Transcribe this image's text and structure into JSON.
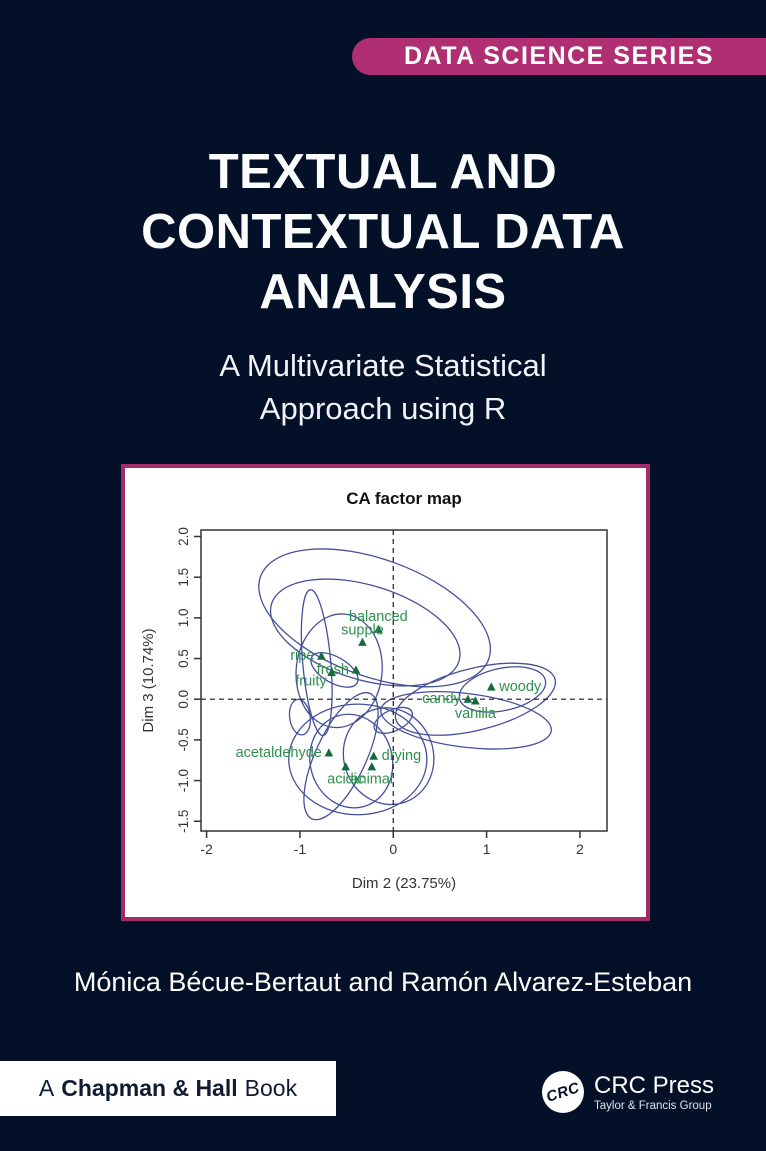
{
  "cover": {
    "series_banner": "DATA SCIENCE SERIES",
    "title_lines": [
      "TEXTUAL AND",
      "CONTEXTUAL DATA",
      "ANALYSIS"
    ],
    "subtitle_lines": [
      "A Multivariate Statistical",
      "Approach using R"
    ],
    "authors": "Mónica Bécue-Bertaut and Ramón Alvarez-Esteban",
    "footer": {
      "chapman_prefix": "A",
      "chapman_bold": "Chapman & Hall",
      "chapman_suffix": "Book",
      "crc_monogram": "CRC",
      "crc_name": "CRC Press",
      "crc_tagline": "Taylor & Francis Group"
    },
    "colors": {
      "background": "#031027",
      "banner": "#b02e72",
      "plot_border": "#a22b6c",
      "text": "#ffffff"
    }
  },
  "chart_data": {
    "type": "scatter",
    "title": "CA factor map",
    "xlabel": "Dim 2 (23.75%)",
    "ylabel": "Dim 3 (10.74%)",
    "xlim": [
      -2.06,
      2.29
    ],
    "ylim": [
      -1.62,
      2.08
    ],
    "x_ticks": [
      {
        "v": -2,
        "label": "-2"
      },
      {
        "v": -1,
        "label": "-1"
      },
      {
        "v": 0,
        "label": "0"
      },
      {
        "v": 1,
        "label": "1"
      },
      {
        "v": 2,
        "label": "2"
      }
    ],
    "y_ticks": [
      {
        "v": 2.0,
        "label": "2.0"
      },
      {
        "v": 1.5,
        "label": "1.5"
      },
      {
        "v": 1.0,
        "label": "1.0"
      },
      {
        "v": 0.5,
        "label": "0.5"
      },
      {
        "v": 0.0,
        "label": "0.0"
      },
      {
        "v": -0.5,
        "label": "-0.5"
      },
      {
        "v": -1.0,
        "label": "-1.0"
      },
      {
        "v": -1.5,
        "label": "-1.5"
      }
    ],
    "dashed_axes": {
      "x": 0,
      "y": 0
    },
    "grid": false,
    "legend": "none",
    "points": [
      {
        "label": "balanced",
        "x": -0.16,
        "y": 0.86,
        "label_pos": "above"
      },
      {
        "label": "supple",
        "x": -0.33,
        "y": 0.7,
        "label_pos": "above"
      },
      {
        "label": "ripe",
        "x": -0.77,
        "y": 0.53,
        "label_pos": "left"
      },
      {
        "label": "fresh",
        "x": -0.4,
        "y": 0.36,
        "label_pos": "left"
      },
      {
        "label": "fruity",
        "x": -0.66,
        "y": 0.33,
        "label_pos": "left-below"
      },
      {
        "label": "candy",
        "x": 0.8,
        "y": 0.0,
        "label_pos": "left"
      },
      {
        "label": "woody",
        "x": 1.05,
        "y": 0.15,
        "label_pos": "right"
      },
      {
        "label": "vanilla",
        "x": 0.88,
        "y": -0.02,
        "label_pos": "below"
      },
      {
        "label": "acetaldehyde",
        "x": -0.69,
        "y": -0.66,
        "label_pos": "left"
      },
      {
        "label": "drying",
        "x": -0.21,
        "y": -0.7,
        "label_pos": "right"
      },
      {
        "label": "acidic",
        "x": -0.51,
        "y": -0.83,
        "label_pos": "below"
      },
      {
        "label": "animal",
        "x": -0.23,
        "y": -0.83,
        "label_pos": "below"
      }
    ],
    "ellipses": [
      {
        "cx": -0.2,
        "cy": 1.0,
        "rx": 1.3,
        "ry": 0.72,
        "rot": 20
      },
      {
        "cx": -0.3,
        "cy": 0.82,
        "rx": 1.05,
        "ry": 0.58,
        "rot": 17
      },
      {
        "cx": -0.82,
        "cy": 0.45,
        "rx": 0.15,
        "ry": 0.9,
        "rot": -5
      },
      {
        "cx": -0.58,
        "cy": 0.35,
        "rx": 0.46,
        "ry": 0.7,
        "rot": 6
      },
      {
        "cx": -0.63,
        "cy": 0.36,
        "rx": 0.28,
        "ry": 0.16,
        "rot": 30
      },
      {
        "cx": -1.0,
        "cy": -0.22,
        "rx": 0.11,
        "ry": 0.22,
        "rot": -8
      },
      {
        "cx": 0.88,
        "cy": 0.0,
        "rx": 0.88,
        "ry": 0.38,
        "rot": -14
      },
      {
        "cx": 1.17,
        "cy": 0.12,
        "rx": 0.47,
        "ry": 0.26,
        "rot": -12
      },
      {
        "cx": 0.78,
        "cy": -0.26,
        "rx": 0.92,
        "ry": 0.33,
        "rot": 7
      },
      {
        "cx": -0.38,
        "cy": -0.74,
        "rx": 0.74,
        "ry": 0.68,
        "rot": 0
      },
      {
        "cx": -0.45,
        "cy": -0.76,
        "rx": 0.44,
        "ry": 0.58,
        "rot": -15
      },
      {
        "cx": -0.56,
        "cy": -0.7,
        "rx": 0.27,
        "ry": 0.85,
        "rot": 25
      },
      {
        "cx": -0.05,
        "cy": -0.7,
        "rx": 0.48,
        "ry": 0.6,
        "rot": -20
      },
      {
        "cx": 0.0,
        "cy": -0.26,
        "rx": 0.22,
        "ry": 0.13,
        "rot": -25
      }
    ],
    "colors": {
      "ellipse": "#45509a",
      "point": "#156b3d",
      "point_label": "#2e8f4f",
      "axis": "#333333",
      "dashed": "#1a1a1a",
      "title": "#111111"
    }
  }
}
